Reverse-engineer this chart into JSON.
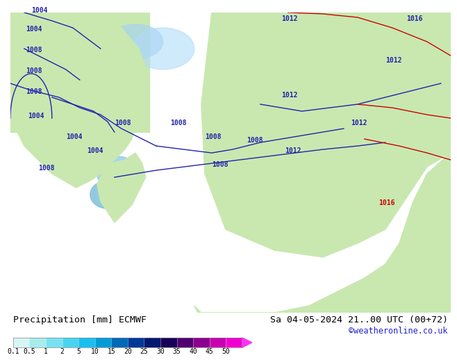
{
  "title_left": "Precipitation [mm] ECMWF",
  "title_right": "Sa 04-05-2024 21..00 UTC (00+72)",
  "watermark": "©weatheronline.co.uk",
  "colorbar_labels": [
    "0.1",
    "0.5",
    "1",
    "2",
    "5",
    "10",
    "15",
    "20",
    "25",
    "30",
    "35",
    "40",
    "45",
    "50"
  ],
  "colorbar_colors": [
    "#d8f5f5",
    "#a8ecec",
    "#78e2f0",
    "#48d4f0",
    "#18c0f0",
    "#009cd8",
    "#006ab8",
    "#003898",
    "#001870",
    "#180058",
    "#500070",
    "#8c0090",
    "#c800b0",
    "#f000d0",
    "#ff30f8"
  ],
  "bg_color": "#ffffff",
  "bottom_bg": "#ffffff",
  "label_fontsize": 8,
  "title_fontsize": 9.5,
  "watermark_color": "#2222cc",
  "map_colors": {
    "land": "#c8e8b0",
    "ocean": "#e8f4ff",
    "precip_light": "#b0e0f8",
    "precip_medium": "#60b0f0",
    "precip_heavy": "#2060c0",
    "precip_extreme": "#800080"
  }
}
